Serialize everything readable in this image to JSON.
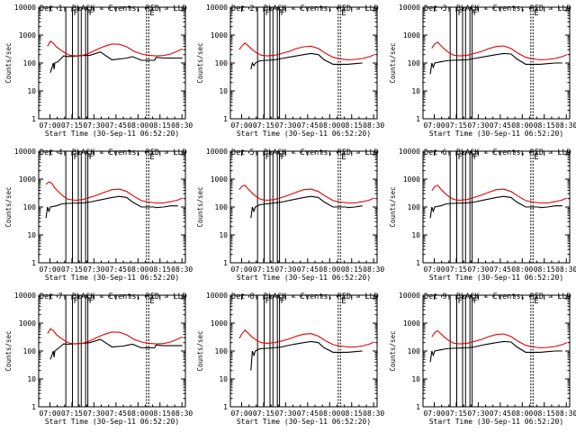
{
  "colors": {
    "events": "#000000",
    "lld": "#e00000",
    "axis": "#000000",
    "background": "#ffffff"
  },
  "common": {
    "ylabel": "Counts/sec",
    "xlabel": "Start Time (30-Sep-11 06:52:20)",
    "x_tick_labels": [
      "07:00",
      "07:15",
      "07:30",
      "07:45",
      "08:00",
      "08:15",
      "08:30"
    ],
    "y_tick_labels": [
      "1",
      "10",
      "100",
      "1000",
      "10000"
    ],
    "marker_labels": [
      "F",
      "F",
      "F",
      "E"
    ]
  },
  "chart_data": [
    {
      "type": "line",
      "title": "Det 1, BLACK = Events, RED = LLD",
      "xlabel": "Start Time (30-Sep-11 06:52:20)",
      "ylabel": "Counts/sec",
      "x_unit": "minutes after 06:52:20",
      "y_scale": "log",
      "ylim": [
        1,
        10000
      ],
      "series": [
        {
          "name": "Events",
          "color": "#000000",
          "x": [
            8,
            10,
            10.5,
            11,
            13,
            17,
            20,
            30,
            35,
            42,
            50,
            58,
            60,
            64,
            70,
            79,
            80,
            85,
            95,
            98
          ],
          "y": [
            45,
            100,
            60,
            100,
            110,
            180,
            170,
            185,
            190,
            250,
            130,
            145,
            150,
            170,
            125,
            125,
            160,
            150,
            150,
            150
          ]
        },
        {
          "name": "LLD",
          "color": "#e00000",
          "x": [
            6,
            8,
            10,
            12,
            15,
            18,
            21,
            25,
            30,
            35,
            40,
            45,
            50,
            55,
            60,
            65,
            70,
            75,
            80,
            85,
            90,
            95,
            98
          ],
          "y": [
            400,
            600,
            520,
            380,
            290,
            230,
            190,
            180,
            190,
            230,
            310,
            400,
            480,
            470,
            380,
            260,
            210,
            190,
            180,
            185,
            210,
            270,
            320
          ]
        }
      ]
    },
    {
      "type": "line",
      "title": "Det 2, BLACK = Events, RED = LLD",
      "xlabel": "Start Time (30-Sep-11 06:52:20)",
      "ylabel": "Counts/sec",
      "x_unit": "minutes after 06:52:20",
      "y_scale": "log",
      "ylim": [
        1,
        10000
      ],
      "series": [
        {
          "name": "Events",
          "color": "#000000",
          "x": [
            14,
            15,
            16,
            17,
            20,
            30,
            35,
            42,
            50,
            55,
            60,
            64,
            70,
            79,
            80,
            85,
            90
          ],
          "y": [
            60,
            100,
            80,
            100,
            120,
            130,
            145,
            170,
            200,
            220,
            200,
            130,
            90,
            90,
            90,
            95,
            100
          ]
        },
        {
          "name": "LLD",
          "color": "#e00000",
          "x": [
            6,
            8,
            10,
            12,
            15,
            18,
            21,
            25,
            30,
            35,
            40,
            45,
            50,
            55,
            60,
            65,
            70,
            75,
            80,
            85,
            90,
            95,
            98
          ],
          "y": [
            300,
            420,
            520,
            420,
            300,
            230,
            190,
            180,
            190,
            220,
            260,
            330,
            380,
            400,
            330,
            220,
            160,
            140,
            130,
            135,
            145,
            170,
            200
          ]
        }
      ]
    },
    {
      "type": "line",
      "title": "Det 3, BLACK = Events, RED = LLD",
      "xlabel": "Start Time (30-Sep-11 06:52:20)",
      "ylabel": "Counts/sec",
      "x_unit": "minutes after 06:52:20",
      "y_scale": "log",
      "ylim": [
        1,
        10000
      ],
      "series": [
        {
          "name": "Events",
          "color": "#000000",
          "x": [
            5,
            6,
            7,
            8,
            12,
            16,
            20,
            30,
            35,
            42,
            50,
            55,
            60,
            64,
            70,
            79,
            80,
            85,
            90,
            95
          ],
          "y": [
            40,
            100,
            70,
            100,
            110,
            120,
            125,
            130,
            145,
            170,
            200,
            220,
            210,
            140,
            90,
            90,
            90,
            95,
            100,
            100
          ]
        },
        {
          "name": "LLD",
          "color": "#e00000",
          "x": [
            6,
            8,
            10,
            12,
            15,
            18,
            21,
            25,
            30,
            35,
            40,
            45,
            50,
            55,
            60,
            65,
            70,
            75,
            80,
            85,
            90,
            95,
            98
          ],
          "y": [
            340,
            480,
            560,
            430,
            300,
            230,
            190,
            180,
            190,
            220,
            260,
            330,
            390,
            410,
            330,
            220,
            160,
            140,
            130,
            135,
            145,
            170,
            200
          ]
        }
      ]
    },
    {
      "type": "line",
      "title": "Det 4, BLACK = Events, RED = LLD",
      "xlabel": "Start Time (30-Sep-11 06:52:20)",
      "ylabel": "Counts/sec",
      "x_unit": "minutes after 06:52:20",
      "y_scale": "log",
      "ylim": [
        1,
        10000
      ],
      "series": [
        {
          "name": "Events",
          "color": "#000000",
          "x": [
            5,
            6,
            7,
            8,
            12,
            16,
            20,
            30,
            35,
            42,
            50,
            55,
            60,
            64,
            70,
            79,
            80,
            85,
            90,
            95
          ],
          "y": [
            40,
            100,
            70,
            100,
            110,
            130,
            135,
            140,
            150,
            180,
            220,
            240,
            220,
            150,
            100,
            100,
            95,
            100,
            110,
            110
          ]
        },
        {
          "name": "LLD",
          "color": "#e00000",
          "x": [
            5,
            7,
            9,
            11,
            14,
            17,
            20,
            25,
            30,
            35,
            40,
            45,
            50,
            55,
            60,
            65,
            70,
            75,
            80,
            85,
            90,
            95,
            98
          ],
          "y": [
            650,
            800,
            700,
            480,
            330,
            240,
            190,
            175,
            185,
            220,
            270,
            340,
            420,
            440,
            360,
            240,
            170,
            150,
            140,
            140,
            155,
            180,
            210
          ]
        }
      ]
    },
    {
      "type": "line",
      "title": "Det 5, BLACK = Events, RED = LLD",
      "xlabel": "Start Time (30-Sep-11 06:52:20)",
      "ylabel": "Counts/sec",
      "x_unit": "minutes after 06:52:20",
      "y_scale": "log",
      "ylim": [
        1,
        10000
      ],
      "series": [
        {
          "name": "Events",
          "color": "#000000",
          "x": [
            14,
            15,
            16,
            17,
            20,
            30,
            35,
            42,
            50,
            55,
            60,
            64,
            70,
            79,
            80,
            85,
            90
          ],
          "y": [
            40,
            100,
            70,
            100,
            120,
            140,
            150,
            180,
            220,
            240,
            220,
            150,
            100,
            100,
            95,
            100,
            110
          ]
        },
        {
          "name": "LLD",
          "color": "#e00000",
          "x": [
            6,
            8,
            10,
            12,
            15,
            18,
            21,
            25,
            30,
            35,
            40,
            45,
            50,
            55,
            60,
            65,
            70,
            75,
            80,
            85,
            90,
            95,
            98
          ],
          "y": [
            420,
            560,
            600,
            450,
            310,
            230,
            185,
            175,
            185,
            220,
            270,
            340,
            420,
            440,
            360,
            240,
            170,
            150,
            140,
            140,
            155,
            180,
            210
          ]
        }
      ]
    },
    {
      "type": "line",
      "title": "Det 6, BLACK = Events, RED = LLD",
      "xlabel": "Start Time (30-Sep-11 06:52:20)",
      "ylabel": "Counts/sec",
      "x_unit": "minutes after 06:52:20",
      "y_scale": "log",
      "ylim": [
        1,
        10000
      ],
      "series": [
        {
          "name": "Events",
          "color": "#000000",
          "x": [
            5,
            6,
            7,
            8,
            12,
            16,
            20,
            30,
            35,
            42,
            50,
            55,
            60,
            64,
            70,
            79,
            80,
            85,
            90,
            95
          ],
          "y": [
            40,
            100,
            70,
            100,
            110,
            130,
            135,
            140,
            150,
            180,
            220,
            240,
            220,
            150,
            100,
            100,
            95,
            100,
            110,
            110
          ]
        },
        {
          "name": "LLD",
          "color": "#e00000",
          "x": [
            6,
            8,
            10,
            12,
            15,
            18,
            21,
            25,
            30,
            35,
            40,
            45,
            50,
            55,
            60,
            65,
            70,
            75,
            80,
            85,
            90,
            95,
            98
          ],
          "y": [
            380,
            540,
            600,
            450,
            310,
            230,
            185,
            175,
            185,
            220,
            270,
            340,
            420,
            440,
            360,
            240,
            170,
            150,
            140,
            140,
            155,
            180,
            210
          ]
        }
      ]
    },
    {
      "type": "line",
      "title": "Det 7, BLACK = Events, RED = LLD",
      "xlabel": "Start Time (30-Sep-11 06:52:20)",
      "ylabel": "Counts/sec",
      "x_unit": "minutes after 06:52:20",
      "y_scale": "log",
      "ylim": [
        1,
        10000
      ],
      "series": [
        {
          "name": "Events",
          "color": "#000000",
          "x": [
            8,
            10,
            10.5,
            11,
            13,
            17,
            20,
            30,
            35,
            42,
            50,
            58,
            60,
            64,
            70,
            79,
            80,
            85,
            95,
            98
          ],
          "y": [
            50,
            100,
            60,
            100,
            120,
            180,
            175,
            190,
            200,
            260,
            140,
            150,
            160,
            175,
            130,
            130,
            165,
            155,
            155,
            155
          ]
        },
        {
          "name": "LLD",
          "color": "#e00000",
          "x": [
            6,
            8,
            10,
            12,
            15,
            18,
            21,
            25,
            30,
            35,
            40,
            45,
            50,
            55,
            60,
            65,
            70,
            75,
            80,
            85,
            90,
            95,
            98
          ],
          "y": [
            420,
            620,
            540,
            390,
            290,
            230,
            190,
            180,
            190,
            230,
            310,
            400,
            480,
            470,
            380,
            260,
            210,
            190,
            180,
            185,
            210,
            270,
            320
          ]
        }
      ]
    },
    {
      "type": "line",
      "title": "Det 8, BLACK = Events, RED = LLD",
      "xlabel": "Start Time (30-Sep-11 06:52:20)",
      "ylabel": "Counts/sec",
      "x_unit": "minutes after 06:52:20",
      "y_scale": "log",
      "ylim": [
        1,
        10000
      ],
      "series": [
        {
          "name": "Events",
          "color": "#000000",
          "x": [
            14,
            15,
            16,
            17,
            20,
            30,
            35,
            42,
            50,
            55,
            60,
            64,
            70,
            79,
            80,
            85,
            90
          ],
          "y": [
            20,
            100,
            70,
            100,
            120,
            130,
            140,
            170,
            200,
            220,
            200,
            130,
            90,
            90,
            90,
            95,
            100
          ]
        },
        {
          "name": "LLD",
          "color": "#e00000",
          "x": [
            6,
            8,
            10,
            12,
            15,
            18,
            21,
            25,
            30,
            35,
            40,
            45,
            50,
            55,
            60,
            65,
            70,
            75,
            80,
            85,
            90,
            95,
            98
          ],
          "y": [
            280,
            420,
            560,
            440,
            310,
            240,
            200,
            190,
            200,
            230,
            270,
            340,
            400,
            420,
            340,
            230,
            170,
            150,
            140,
            140,
            150,
            180,
            210
          ]
        }
      ]
    },
    {
      "type": "line",
      "title": "Det 9, BLACK = Events, RED = LLD",
      "xlabel": "Start Time (30-Sep-11 06:52:20)",
      "ylabel": "Counts/sec",
      "x_unit": "minutes after 06:52:20",
      "y_scale": "log",
      "ylim": [
        1,
        10000
      ],
      "series": [
        {
          "name": "Events",
          "color": "#000000",
          "x": [
            5,
            6,
            7,
            8,
            12,
            16,
            20,
            30,
            35,
            42,
            50,
            55,
            60,
            64,
            70,
            79,
            80,
            85,
            90,
            95
          ],
          "y": [
            40,
            100,
            70,
            100,
            110,
            120,
            125,
            130,
            140,
            170,
            200,
            220,
            210,
            140,
            90,
            90,
            90,
            95,
            100,
            100
          ]
        },
        {
          "name": "LLD",
          "color": "#e00000",
          "x": [
            6,
            8,
            10,
            12,
            15,
            18,
            21,
            25,
            30,
            35,
            40,
            45,
            50,
            55,
            60,
            65,
            70,
            75,
            80,
            85,
            90,
            95,
            98
          ],
          "y": [
            320,
            460,
            540,
            420,
            300,
            230,
            190,
            180,
            190,
            220,
            260,
            330,
            390,
            410,
            330,
            220,
            160,
            140,
            130,
            135,
            145,
            170,
            200
          ]
        }
      ]
    }
  ],
  "markers": {
    "note": "vertical flag lines shared by all panels, minutes after 06:52:20",
    "x": [
      18.5,
      23.0,
      27.0,
      29.0,
      32.0,
      33.5,
      73.5,
      75.0
    ],
    "f_label_positions": [
      23.0,
      32.0,
      33.5
    ],
    "e_label_position": 75.0
  },
  "x_tick_minutes": [
    7.67,
    22.67,
    37.67,
    52.67,
    67.67,
    82.67,
    97.67
  ]
}
